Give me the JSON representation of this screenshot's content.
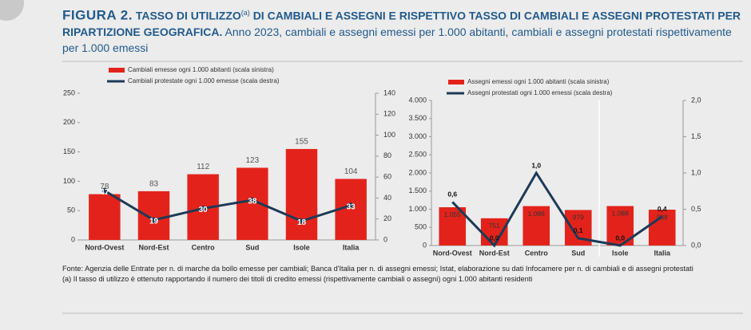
{
  "figure": {
    "label": "FIGURA 2.",
    "title": "TASSO DI UTILIZZO",
    "title_note": "(a)",
    "title_rest": "DI CAMBIALI E ASSEGNI E RISPETTIVO TASSO DI CAMBIALI E ASSEGNI PROTESTATI PER RIPARTIZIONE GEOGRAFICA.",
    "subtitle": "Anno 2023, cambiali e assegni emessi per 1.000 abitanti, cambiali e assegni protestati rispettivamente per 1.000 emessi"
  },
  "notes": [
    "Fonte: Agenzia delle Entrate per n. di marche da bollo emesse per cambiali; Banca d'Italia per n. di assegni emessi; Istat, elaborazione su dati Infocamere per n. di cambiali e di assegni protestati",
    "(a) Il tasso di utilizzo è ottenuto rapportando il numero dei titoli di credito emessi (rispettivamente cambiali o assegni) ogni 1.000 abitanti residenti"
  ],
  "chart_data": [
    {
      "type": "bar",
      "categories": [
        "Nord-Ovest",
        "Nord-Est",
        "Centro",
        "Sud",
        "Isole",
        "Italia"
      ],
      "series": [
        {
          "name": "Cambiali emesse ogni 1.000 abitanti (scala sinistra)",
          "color": "#e3231b",
          "values": [
            78,
            83,
            112,
            123,
            155,
            104
          ]
        },
        {
          "name": "Cambiali protestate ogni 1.000 emesse (scala destra)",
          "color": "#1d3a57",
          "axis": "y2",
          "values": [
            47,
            19,
            30,
            38,
            18,
            33
          ]
        }
      ],
      "ylim": [
        0,
        250
      ],
      "yticks": [
        0,
        50,
        100,
        150,
        200,
        250
      ],
      "y2lim": [
        0,
        140
      ],
      "y2ticks": [
        0,
        20,
        40,
        60,
        80,
        100,
        120,
        140
      ],
      "grid": false
    },
    {
      "type": "bar",
      "categories": [
        "Nord-Ovest",
        "Nord-Est",
        "Centro",
        "Sud",
        "Isole",
        "Italia"
      ],
      "series": [
        {
          "name": "Assegni emessi ogni 1.000 abitanti (scala sinistra)",
          "color": "#e3231b",
          "values": [
            1055,
            751,
            1086,
            979,
            1088,
            988
          ],
          "value_labels": [
            "1.055",
            "751",
            "1.086",
            "979",
            "1.088",
            "988"
          ]
        },
        {
          "name": "Assegni protestati ogni 1.000 emessi (scala destra)",
          "color": "#1d3a57",
          "axis": "y2",
          "values": [
            0.6,
            0.0,
            1.0,
            0.1,
            0.0,
            0.4
          ],
          "value_labels": [
            "0,6",
            "0,0",
            "1,0",
            "0,1",
            "0,0",
            "0,4"
          ]
        }
      ],
      "ylim": [
        0,
        4000
      ],
      "yticks": [
        0,
        500,
        {
          "value": 1000,
          "label": "1.000"
        },
        {
          "value": 1500,
          "label": "1.500"
        },
        {
          "value": 2000,
          "label": "2.000"
        },
        {
          "value": 2500,
          "label": "2.500"
        },
        {
          "value": 3000,
          "label": "3.000"
        },
        {
          "value": 3500,
          "label": "3.500"
        },
        {
          "value": 4000,
          "label": "4.000"
        }
      ],
      "y2lim": [
        0,
        2
      ],
      "y2ticks": [
        {
          "value": 0,
          "label": "0,0"
        },
        {
          "value": 0.5,
          "label": "0,5"
        },
        {
          "value": 1,
          "label": "1,0"
        },
        {
          "value": 1.5,
          "label": "1,5"
        },
        {
          "value": 2,
          "label": "2,0"
        }
      ],
      "grid": false
    }
  ]
}
